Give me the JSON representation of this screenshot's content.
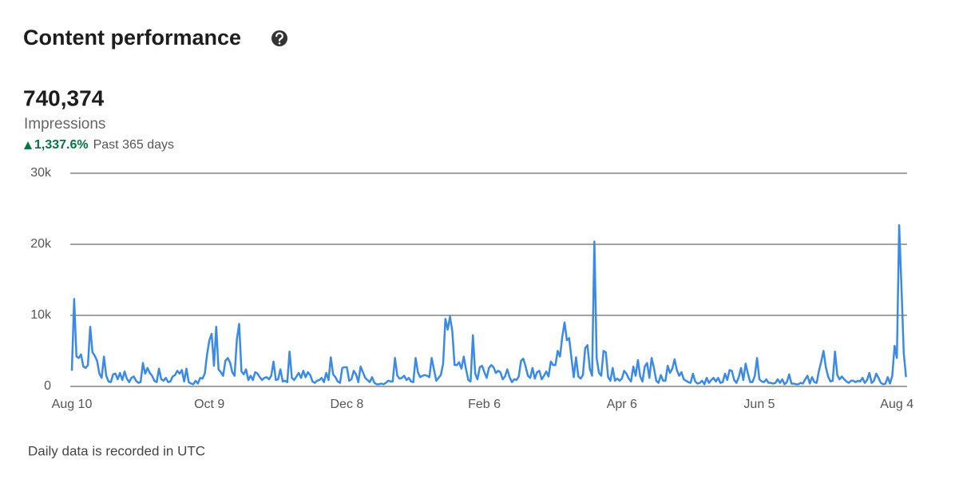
{
  "header": {
    "title": "Content performance",
    "total": "740,374",
    "metric": "Impressions",
    "change": "1,337.6%",
    "period": "Past 365 days"
  },
  "chart_data": {
    "type": "line",
    "color": "#3a8ae8",
    "grid": true,
    "ylim": [
      0,
      30000
    ],
    "yticks": [
      0,
      {
        "value": 10000,
        "label": "10k"
      },
      {
        "value": 20000,
        "label": "20k"
      },
      {
        "value": 30000,
        "label": "30k"
      }
    ],
    "categories": [
      "Aug 10",
      null,
      null,
      null,
      null,
      null,
      null,
      null,
      null,
      null,
      null,
      null,
      null,
      null,
      null,
      null,
      null,
      null,
      null,
      null,
      null,
      null,
      null,
      null,
      null,
      null,
      null,
      null,
      null,
      null,
      null,
      null,
      null,
      null,
      null,
      null,
      null,
      null,
      null,
      null,
      null,
      null,
      null,
      null,
      null,
      null,
      null,
      null,
      null,
      null,
      null,
      null,
      null,
      null,
      null,
      null,
      null,
      null,
      null,
      null,
      "Oct 9",
      null,
      null,
      null,
      null,
      null,
      null,
      null,
      null,
      null,
      null,
      null,
      null,
      null,
      null,
      null,
      null,
      null,
      null,
      null,
      null,
      null,
      null,
      null,
      null,
      null,
      null,
      null,
      null,
      null,
      null,
      null,
      null,
      null,
      null,
      null,
      null,
      null,
      null,
      null,
      null,
      null,
      null,
      null,
      null,
      null,
      null,
      null,
      null,
      null,
      null,
      null,
      null,
      null,
      null,
      null,
      null,
      null,
      null,
      null,
      "Dec 8",
      null,
      null,
      null,
      null,
      null,
      null,
      null,
      null,
      null,
      null,
      null,
      null,
      null,
      null,
      null,
      null,
      null,
      null,
      null,
      null,
      null,
      null,
      null,
      null,
      null,
      null,
      null,
      null,
      null,
      null,
      null,
      null,
      null,
      null,
      null,
      null,
      null,
      null,
      null,
      null,
      null,
      null,
      null,
      null,
      null,
      null,
      null,
      null,
      null,
      null,
      null,
      null,
      null,
      null,
      null,
      null,
      null,
      null,
      null,
      "Feb 6",
      null,
      null,
      null,
      null,
      null,
      null,
      null,
      null,
      null,
      null,
      null,
      null,
      null,
      null,
      null,
      null,
      null,
      null,
      null,
      null,
      null,
      null,
      null,
      null,
      null,
      null,
      null,
      null,
      null,
      null,
      null,
      null,
      null,
      null,
      null,
      null,
      null,
      null,
      null,
      null,
      null,
      null,
      null,
      null,
      null,
      null,
      null,
      null,
      null,
      null,
      null,
      null,
      null,
      null,
      null,
      null,
      null,
      null,
      null,
      "Apr 6",
      null,
      null,
      null,
      null,
      null,
      null,
      null,
      null,
      null,
      null,
      null,
      null,
      null,
      null,
      null,
      null,
      null,
      null,
      null,
      null,
      null,
      null,
      null,
      null,
      null,
      null,
      null,
      null,
      null,
      null,
      null,
      null,
      null,
      null,
      null,
      null,
      null,
      null,
      null,
      null,
      null,
      null,
      null,
      null,
      null,
      null,
      null,
      null,
      null,
      null,
      null,
      null,
      null,
      null,
      null,
      null,
      null,
      null,
      null,
      "Jun 5",
      null,
      null,
      null,
      null,
      null,
      null,
      null,
      null,
      null,
      null,
      null,
      null,
      null,
      null,
      null,
      null,
      null,
      null,
      null,
      null,
      null,
      null,
      null,
      null,
      null,
      null,
      null,
      null,
      null,
      null,
      null,
      null,
      null,
      null,
      null,
      null,
      null,
      null,
      null,
      null,
      null,
      null,
      null,
      null,
      null,
      null,
      null,
      null,
      null,
      null,
      null,
      null,
      null,
      null,
      null,
      null,
      null,
      null,
      null,
      "Aug 4",
      null,
      null,
      null,
      null
    ],
    "values": [
      2200,
      12300,
      4200,
      4000,
      4500,
      2800,
      2600,
      3000,
      8400,
      4800,
      4300,
      3600,
      1800,
      1200,
      4200,
      1500,
      700,
      600,
      1700,
      1800,
      1000,
      1900,
      900,
      2100,
      1100,
      600,
      1200,
      1400,
      800,
      500,
      600,
      3300,
      1800,
      2600,
      1900,
      1500,
      800,
      600,
      2500,
      1000,
      800,
      1200,
      600,
      700,
      1400,
      1600,
      2200,
      1800,
      2300,
      700,
      2500,
      600,
      400,
      300,
      800,
      400,
      1200,
      1100,
      1800,
      4500,
      6500,
      7400,
      2900,
      8400,
      2400,
      2000,
      1500,
      3600,
      4000,
      3400,
      2000,
      1500,
      6600,
      8800,
      2100,
      1700,
      2400,
      900,
      1500,
      900,
      2000,
      1800,
      1300,
      900,
      1200,
      1300,
      1000,
      1500,
      3500,
      900,
      1000,
      2400,
      700,
      800,
      600,
      4900,
      1200,
      900,
      1400,
      1900,
      1200,
      2200,
      1300,
      2000,
      1600,
      700,
      500,
      800,
      900,
      1200,
      600,
      1900,
      900,
      4100,
      1700,
      1300,
      700,
      500,
      2600,
      2700,
      2700,
      800,
      1000,
      2200,
      1700,
      600,
      2800,
      2000,
      1200,
      900,
      600,
      1300,
      500,
      300,
      300,
      400,
      300,
      500,
      800,
      700,
      700,
      4000,
      1500,
      1100,
      1200,
      1500,
      900,
      1200,
      700,
      600,
      4000,
      2000,
      1300,
      1500,
      1600,
      1500,
      1300,
      4000,
      2400,
      800,
      1200,
      1600,
      3200,
      9500,
      8000,
      9800,
      7800,
      3000,
      3000,
      3400,
      2500,
      4200,
      2400,
      900,
      700,
      7200,
      1800,
      1000,
      2700,
      2900,
      2000,
      1200,
      2600,
      3000,
      2700,
      1900,
      2200,
      2000,
      1000,
      1400,
      2400,
      1300,
      600,
      1000,
      900,
      1400,
      3600,
      3900,
      2800,
      1500,
      1200,
      2600,
      1100,
      2000,
      2200,
      1000,
      1500,
      2100,
      1400,
      3500,
      3000,
      3000,
      5000,
      4200,
      7000,
      9000,
      6500,
      6800,
      4000,
      1300,
      4100,
      1400,
      1100,
      1600,
      5400,
      5800,
      2500,
      1500,
      20400,
      4000,
      1900,
      1500,
      5000,
      4800,
      1300,
      800,
      2600,
      800,
      1100,
      800,
      1100,
      2200,
      1800,
      1100,
      700,
      2800,
      1500,
      3700,
      1400,
      700,
      2800,
      3300,
      1200,
      4000,
      2600,
      800,
      500,
      1600,
      800,
      800,
      2900,
      1900,
      2500,
      3800,
      2300,
      1500,
      2000,
      1000,
      800,
      600,
      500,
      1800,
      700,
      400,
      500,
      800,
      300,
      1200,
      500,
      900,
      1200,
      700,
      1200,
      500,
      600,
      1800,
      900,
      2300,
      2200,
      900,
      500,
      1300,
      2600,
      900,
      3200,
      1800,
      600,
      600,
      1500,
      4000,
      1000,
      700,
      600,
      1000,
      500,
      500,
      400,
      500,
      1000,
      500,
      1000,
      300,
      600,
      1700,
      400,
      400,
      300,
      300,
      500,
      400,
      1000,
      1500,
      400,
      1300,
      600,
      500,
      2200,
      3500,
      5000,
      2700,
      1400,
      700,
      800,
      4900,
      1600,
      1000,
      1400,
      1000,
      700,
      500,
      800,
      800,
      600,
      800,
      700,
      1200,
      500,
      900,
      1900,
      500,
      800,
      1800,
      1200,
      500,
      300,
      400,
      1300,
      400,
      1500,
      5700,
      4000,
      22700,
      14000,
      4700,
      1300
    ]
  },
  "footer": {
    "note": "Daily data is recorded in UTC"
  }
}
